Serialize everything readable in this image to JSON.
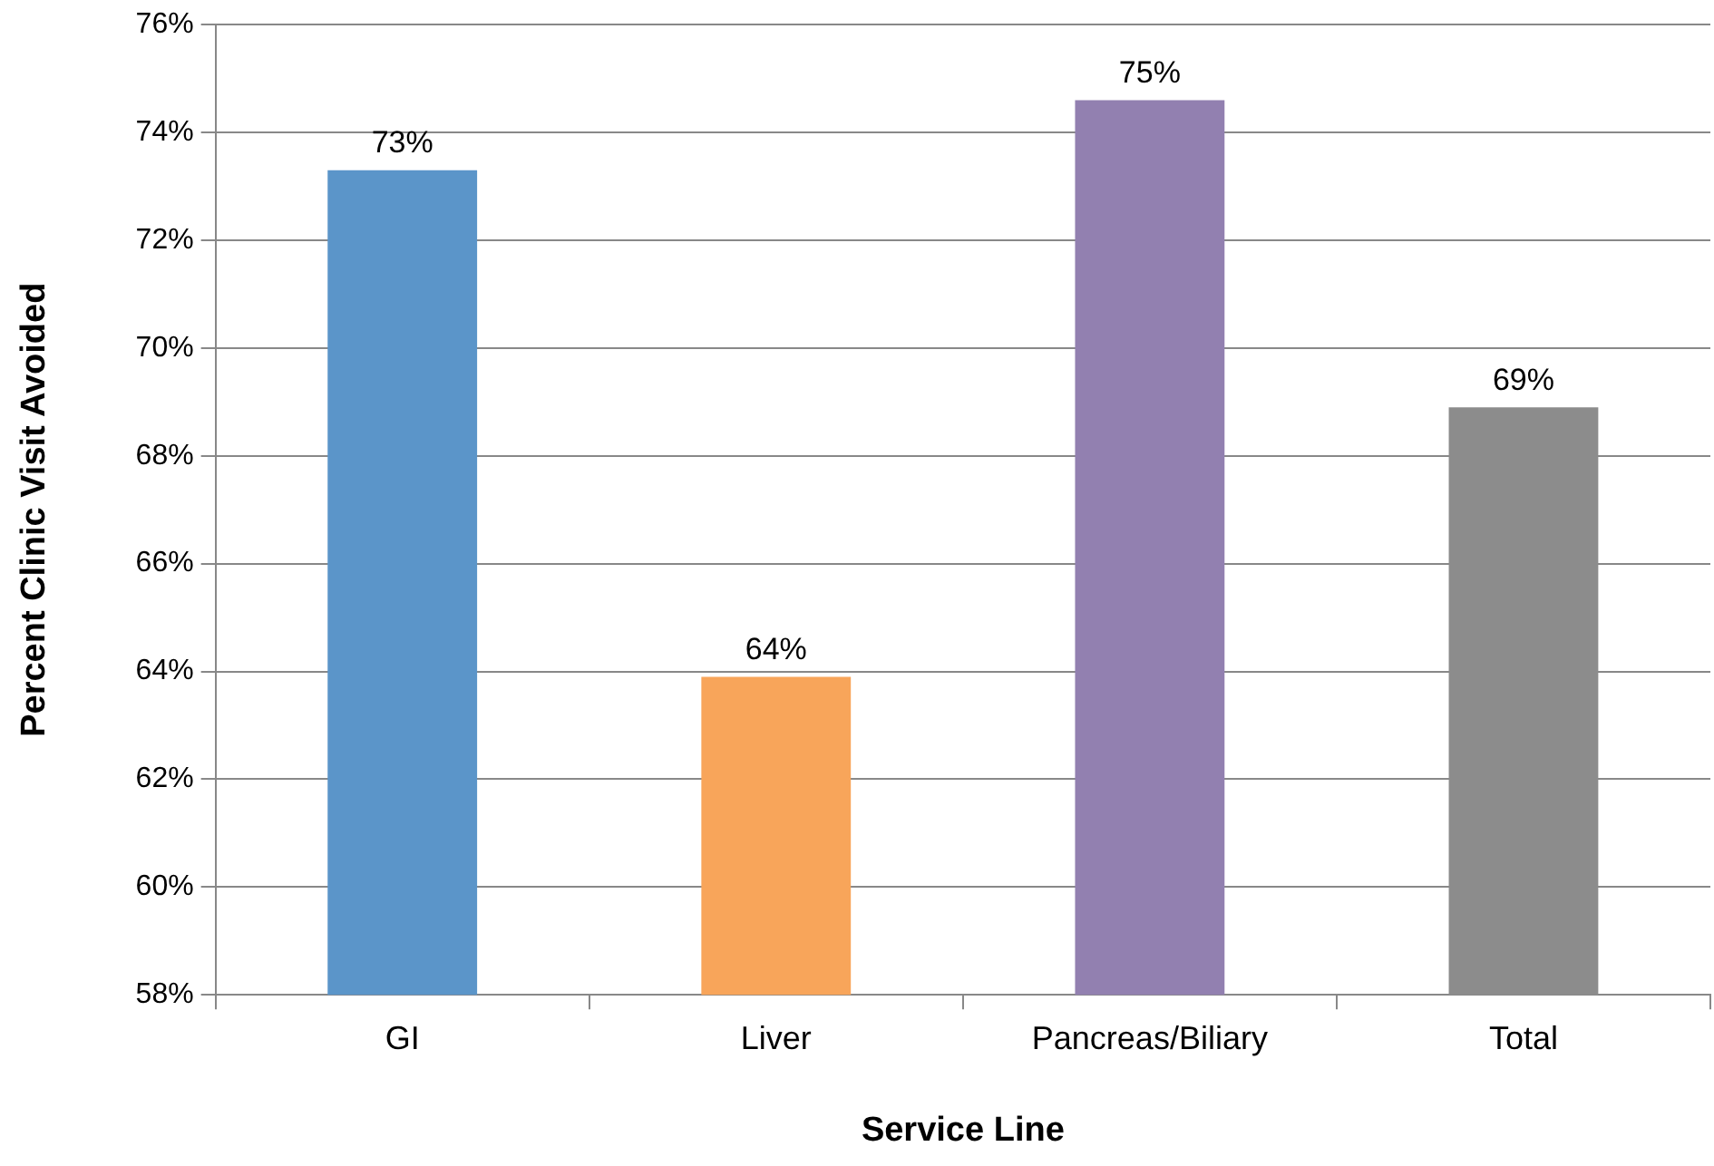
{
  "chart_data": {
    "type": "bar",
    "xlabel": "Service Line",
    "ylabel": "Percent Clinic Visit Avoided",
    "categories": [
      "GI",
      "Liver",
      "Pancreas/Biliary",
      "Total"
    ],
    "values": [
      73.3,
      63.9,
      74.6,
      68.9
    ],
    "colors": [
      "#5b95c9",
      "#f8a55a",
      "#9280b0",
      "#8c8c8c"
    ],
    "value_labels": [
      "73%",
      "64%",
      "75%",
      "69%"
    ],
    "ylim": [
      58,
      76
    ],
    "yticks": [
      {
        "value": 58,
        "label": "58%"
      },
      {
        "value": 60,
        "label": "60%"
      },
      {
        "value": 62,
        "label": "62%"
      },
      {
        "value": 64,
        "label": "64%"
      },
      {
        "value": 66,
        "label": "66%"
      },
      {
        "value": 68,
        "label": "68%"
      },
      {
        "value": 70,
        "label": "70%"
      },
      {
        "value": 72,
        "label": "72%"
      },
      {
        "value": 74,
        "label": "74%"
      },
      {
        "value": 76,
        "label": "76%"
      }
    ],
    "grid": "y",
    "legend": false
  }
}
